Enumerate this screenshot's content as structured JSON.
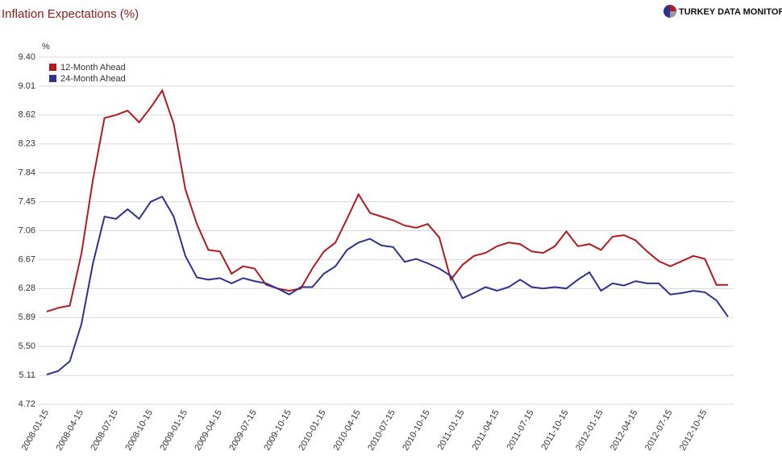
{
  "chart_data": {
    "type": "line",
    "title": "Inflation Expectations (%)",
    "brand": "TURKEY DATA MONITOR",
    "y_label": "%",
    "categories": [
      "2008-01-15",
      null,
      null,
      "2008-04-15",
      null,
      null,
      "2008-07-15",
      null,
      null,
      "2008-10-15",
      null,
      null,
      "2009-01-15",
      null,
      null,
      "2009-04-15",
      null,
      null,
      "2009-07-15",
      null,
      null,
      "2009-10-15",
      null,
      null,
      "2010-01-15",
      null,
      null,
      "2010-04-15",
      null,
      null,
      "2010-07-15",
      null,
      null,
      "2010-10-15",
      null,
      null,
      "2011-01-15",
      null,
      null,
      "2011-04-15",
      null,
      null,
      "2011-07-15",
      null,
      null,
      "2011-10-15",
      null,
      null,
      "2012-01-15",
      null,
      null,
      "2012-04-15",
      null,
      null,
      "2012-07-15",
      null,
      null,
      "2012-10-15",
      null,
      null
    ],
    "series": [
      {
        "name": "12-Month Ahead",
        "color": "#b3191e",
        "values": [
          5.97,
          6.02,
          6.05,
          6.75,
          7.75,
          8.58,
          8.62,
          8.68,
          8.52,
          8.72,
          8.95,
          8.5,
          7.62,
          7.15,
          6.8,
          6.78,
          6.48,
          6.58,
          6.55,
          6.33,
          6.28,
          6.25,
          6.28,
          6.55,
          6.78,
          6.9,
          7.22,
          7.55,
          7.3,
          7.25,
          7.2,
          7.13,
          7.1,
          7.15,
          6.97,
          6.4,
          6.6,
          6.72,
          6.76,
          6.85,
          6.9,
          6.88,
          6.78,
          6.76,
          6.85,
          7.05,
          6.85,
          6.88,
          6.8,
          6.98,
          7.0,
          6.93,
          6.78,
          6.65,
          6.58,
          6.65,
          6.72,
          6.68,
          6.33,
          6.33
        ]
      },
      {
        "name": "24-Month Ahead",
        "color": "#2e3192",
        "values": [
          5.12,
          5.17,
          5.3,
          5.8,
          6.62,
          7.25,
          7.22,
          7.35,
          7.22,
          7.45,
          7.52,
          7.25,
          6.72,
          6.43,
          6.4,
          6.42,
          6.35,
          6.42,
          6.38,
          6.35,
          6.28,
          6.2,
          6.3,
          6.3,
          6.48,
          6.58,
          6.8,
          6.9,
          6.95,
          6.86,
          6.84,
          6.64,
          6.68,
          6.62,
          6.55,
          6.45,
          6.15,
          6.22,
          6.3,
          6.25,
          6.3,
          6.4,
          6.3,
          6.28,
          6.3,
          6.28,
          6.4,
          6.5,
          6.25,
          6.35,
          6.32,
          6.38,
          6.35,
          6.35,
          6.2,
          6.22,
          6.25,
          6.23,
          6.12,
          5.9
        ]
      }
    ],
    "ylim": [
      4.72,
      9.4
    ],
    "yticks": [
      4.72,
      5.11,
      {
        "value": 5.5,
        "label": "5.50"
      },
      5.89,
      6.28,
      6.67,
      7.06,
      7.45,
      7.84,
      8.23,
      8.62,
      9.01,
      {
        "value": 9.4,
        "label": "9.40"
      }
    ],
    "grid": true,
    "legend": "top-left"
  }
}
